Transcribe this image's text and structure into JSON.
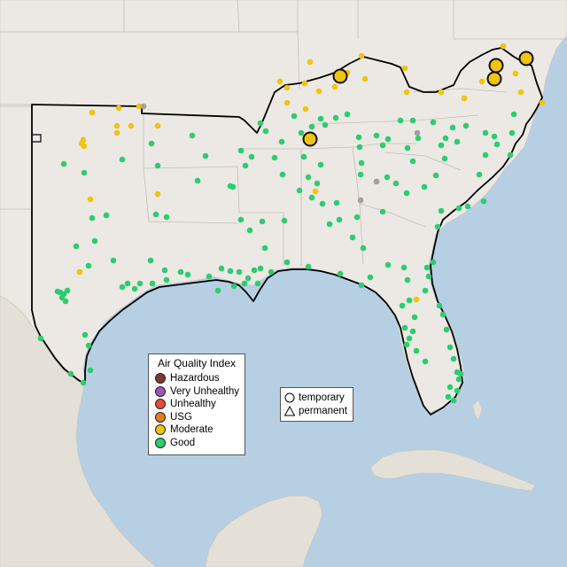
{
  "legend_aqi": {
    "title": "Air Quality Index",
    "items": [
      {
        "label": "Hazardous",
        "color": "#7e3a2f"
      },
      {
        "label": "Very Unhealthy",
        "color": "#9b59b6"
      },
      {
        "label": "Unhealthy",
        "color": "#e74c3c"
      },
      {
        "label": "USG",
        "color": "#e67e22"
      },
      {
        "label": "Moderate",
        "color": "#f1c40f"
      },
      {
        "label": "Good",
        "color": "#2ecc71"
      }
    ]
  },
  "legend_shape": {
    "items": [
      {
        "label": "temporary",
        "shape": "circle"
      },
      {
        "label": "permanent",
        "shape": "triangle"
      }
    ]
  },
  "map": {
    "land_color": "#ece9e4",
    "water_color": "#b7cfe2",
    "no_data_color": "#a0a0a0"
  }
}
